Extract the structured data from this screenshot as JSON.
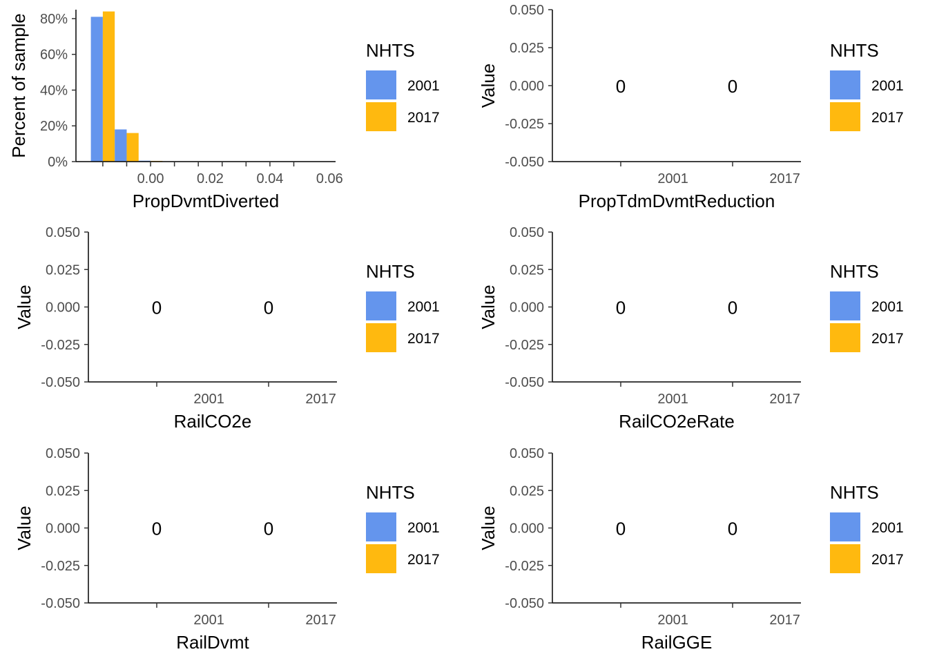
{
  "colors": {
    "2001": "#6495ED",
    "2017": "#FFB90F"
  },
  "chart_data": [
    {
      "type": "bar",
      "xlabel": "PropDvmtDiverted",
      "ylabel": "Percent of sample",
      "xlim": [
        -0.025,
        0.062
      ],
      "ylim": [
        0,
        0.85
      ],
      "xticks": [
        0.0,
        0.02,
        0.04,
        0.06
      ],
      "xtick_labels": [
        "0.00",
        "0.02",
        "0.04",
        "0.06"
      ],
      "yticks": [
        0,
        0.2,
        0.4,
        0.6,
        0.8
      ],
      "ytick_labels": [
        "0%",
        "20%",
        "40%",
        "60%",
        "80%"
      ],
      "x_tickmarks": [
        -0.016,
        -0.008,
        0.0,
        0.008,
        0.016,
        0.024,
        0.032,
        0.04,
        0.048
      ],
      "bin_width": 0.008,
      "bins": [
        -0.016,
        -0.008,
        0.0
      ],
      "series": [
        {
          "name": "2001",
          "values": [
            0.81,
            0.18,
            0.005
          ]
        },
        {
          "name": "2017",
          "values": [
            0.84,
            0.16,
            0.004
          ]
        }
      ],
      "legend": {
        "title": "NHTS",
        "labels": [
          "2001",
          "2017"
        ],
        "position": "right"
      }
    },
    {
      "type": "bar",
      "xlabel": "PropTdmDvmtReduction",
      "ylabel": "Value",
      "ylim": [
        -0.05,
        0.05
      ],
      "yticks": [
        -0.05,
        -0.025,
        0,
        0.025,
        0.05
      ],
      "ytick_labels": [
        "-0.050",
        "-0.025",
        "0.000",
        "0.025",
        "0.050"
      ],
      "categories": [
        "2001",
        "2017"
      ],
      "values": [
        0,
        0
      ],
      "data_labels": [
        "0",
        "0"
      ],
      "legend": {
        "title": "NHTS",
        "labels": [
          "2001",
          "2017"
        ],
        "position": "right"
      }
    },
    {
      "type": "bar",
      "xlabel": "RailCO2e",
      "ylabel": "Value",
      "ylim": [
        -0.05,
        0.05
      ],
      "yticks": [
        -0.05,
        -0.025,
        0,
        0.025,
        0.05
      ],
      "ytick_labels": [
        "-0.050",
        "-0.025",
        "0.000",
        "0.025",
        "0.050"
      ],
      "categories": [
        "2001",
        "2017"
      ],
      "values": [
        0,
        0
      ],
      "data_labels": [
        "0",
        "0"
      ],
      "legend": {
        "title": "NHTS",
        "labels": [
          "2001",
          "2017"
        ],
        "position": "right"
      }
    },
    {
      "type": "bar",
      "xlabel": "RailCO2eRate",
      "ylabel": "Value",
      "ylim": [
        -0.05,
        0.05
      ],
      "yticks": [
        -0.05,
        -0.025,
        0,
        0.025,
        0.05
      ],
      "ytick_labels": [
        "-0.050",
        "-0.025",
        "0.000",
        "0.025",
        "0.050"
      ],
      "categories": [
        "2001",
        "2017"
      ],
      "values": [
        0,
        0
      ],
      "data_labels": [
        "0",
        "0"
      ],
      "legend": {
        "title": "NHTS",
        "labels": [
          "2001",
          "2017"
        ],
        "position": "right"
      }
    },
    {
      "type": "bar",
      "xlabel": "RailDvmt",
      "ylabel": "Value",
      "ylim": [
        -0.05,
        0.05
      ],
      "yticks": [
        -0.05,
        -0.025,
        0,
        0.025,
        0.05
      ],
      "ytick_labels": [
        "-0.050",
        "-0.025",
        "0.000",
        "0.025",
        "0.050"
      ],
      "categories": [
        "2001",
        "2017"
      ],
      "values": [
        0,
        0
      ],
      "data_labels": [
        "0",
        "0"
      ],
      "legend": {
        "title": "NHTS",
        "labels": [
          "2001",
          "2017"
        ],
        "position": "right"
      }
    },
    {
      "type": "bar",
      "xlabel": "RailGGE",
      "ylabel": "Value",
      "ylim": [
        -0.05,
        0.05
      ],
      "yticks": [
        -0.05,
        -0.025,
        0,
        0.025,
        0.05
      ],
      "ytick_labels": [
        "-0.050",
        "-0.025",
        "0.000",
        "0.025",
        "0.050"
      ],
      "categories": [
        "2001",
        "2017"
      ],
      "values": [
        0,
        0
      ],
      "data_labels": [
        "0",
        "0"
      ],
      "legend": {
        "title": "NHTS",
        "labels": [
          "2001",
          "2017"
        ],
        "position": "right"
      }
    }
  ]
}
